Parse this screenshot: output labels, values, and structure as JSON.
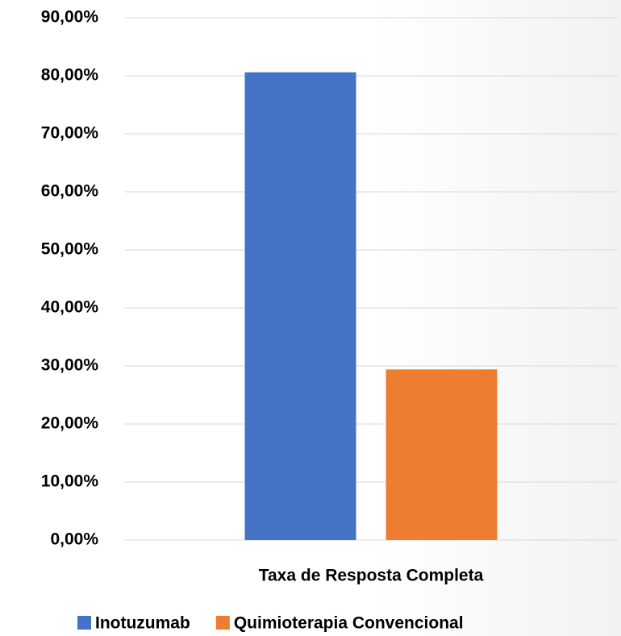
{
  "chart_data": {
    "type": "bar",
    "categories": [
      "Taxa de Resposta Completa"
    ],
    "series": [
      {
        "name": "Inotuzumab",
        "color": "#4472c4",
        "values": [
          80.6
        ]
      },
      {
        "name": "Quimioterapia Convencional",
        "color": "#ed7d31",
        "values": [
          29.4
        ]
      }
    ],
    "ylim": [
      0,
      90
    ],
    "yticks": [
      {
        "value": 0,
        "label": "0,00%"
      },
      {
        "value": 10,
        "label": "10,00%"
      },
      {
        "value": 20,
        "label": "20,00%"
      },
      {
        "value": 30,
        "label": "30,00%"
      },
      {
        "value": 40,
        "label": "40,00%"
      },
      {
        "value": 50,
        "label": "50,00%"
      },
      {
        "value": 60,
        "label": "60,00%"
      },
      {
        "value": 70,
        "label": "70,00%"
      },
      {
        "value": 80,
        "label": "80,00%"
      },
      {
        "value": 90,
        "label": "90,00%"
      }
    ],
    "grid": true,
    "legend": "bottom"
  }
}
